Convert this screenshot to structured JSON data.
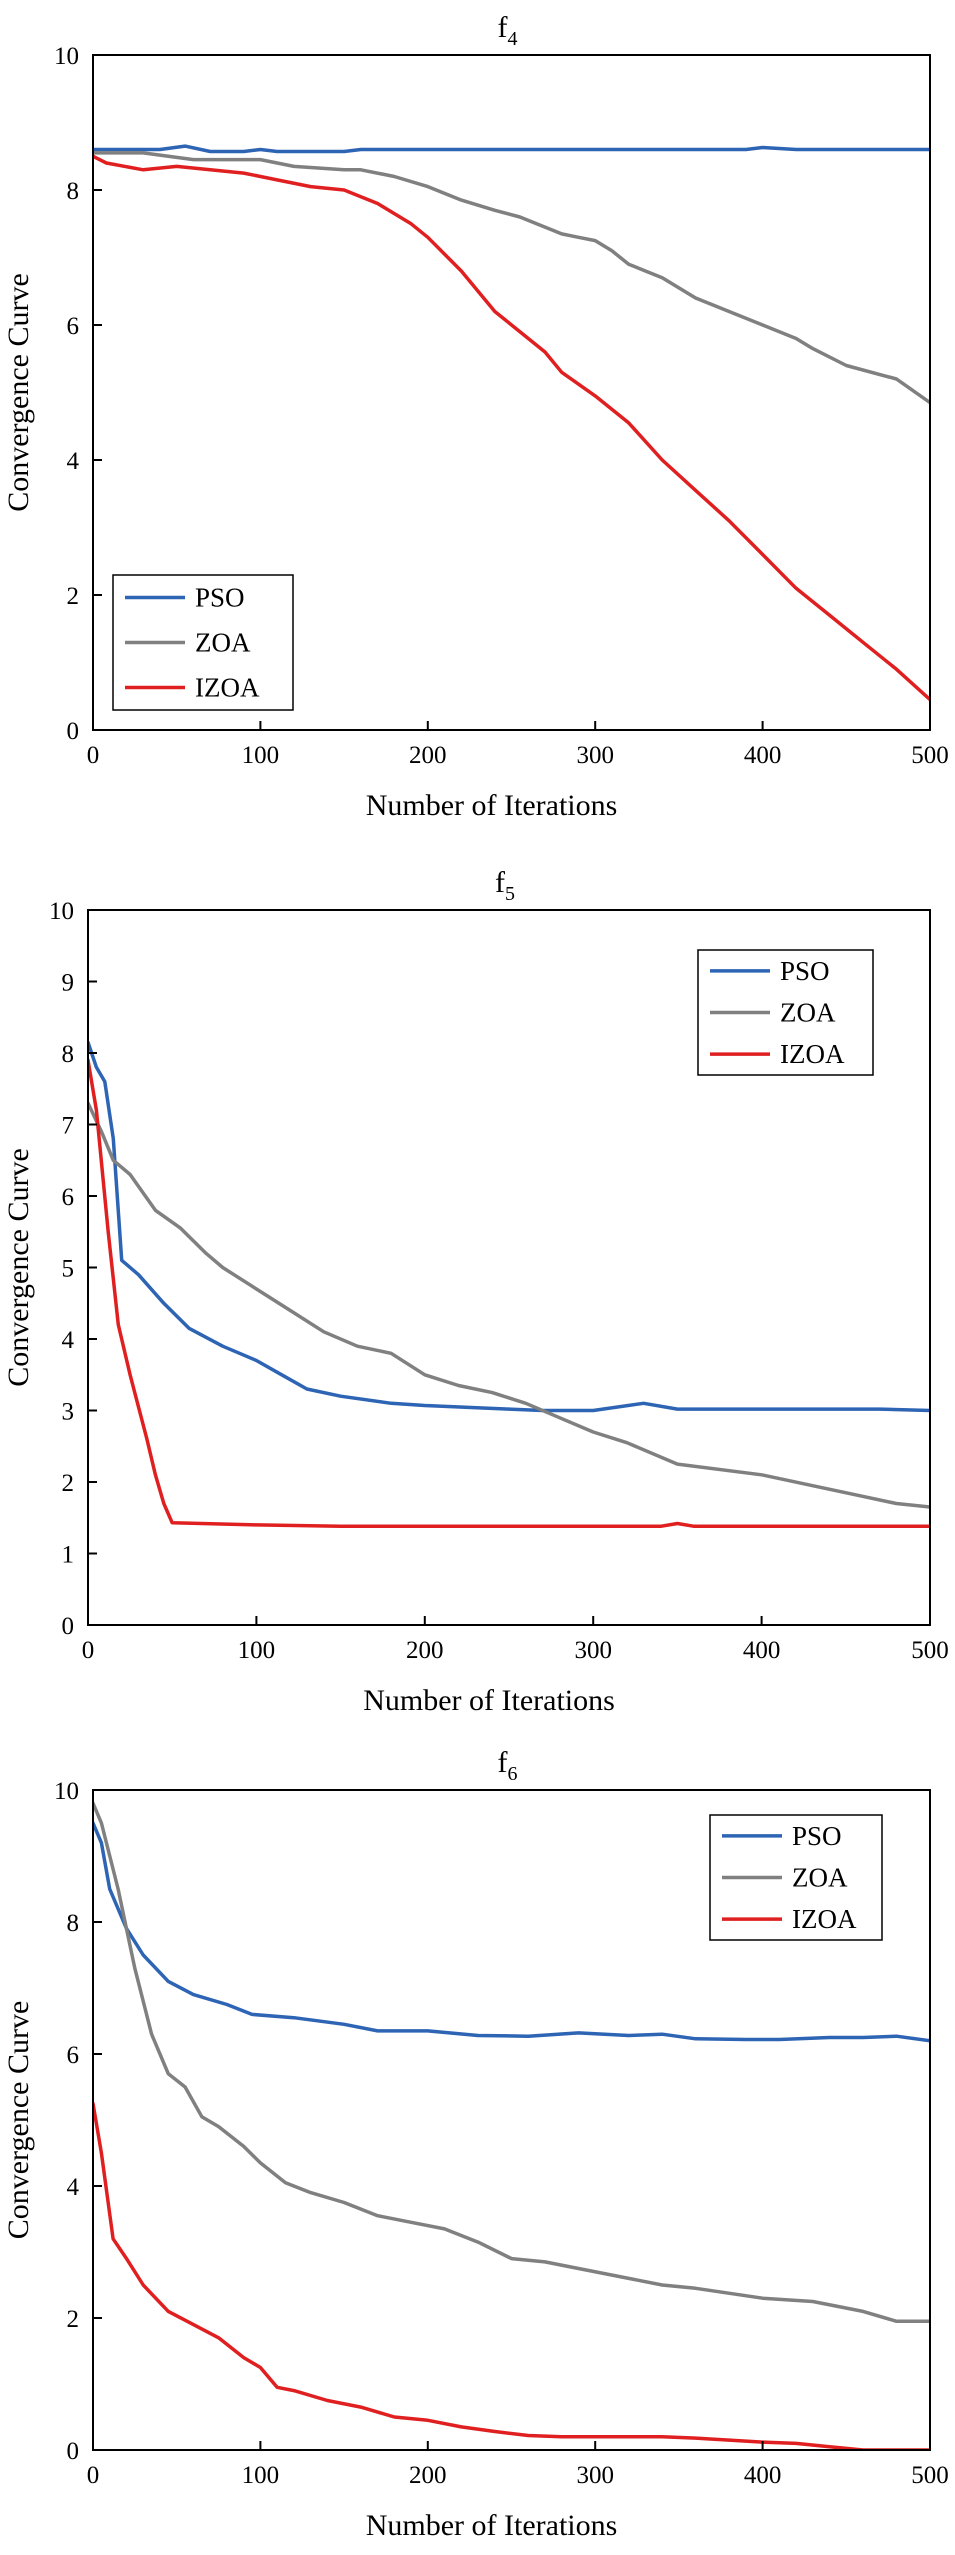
{
  "chart_data": [
    {
      "type": "line",
      "title": "f",
      "title_sub": "4",
      "xlabel": "Number of Iterations",
      "ylabel": "Convergence Curve",
      "xlim": [
        0,
        500
      ],
      "ylim": [
        0,
        10
      ],
      "xticks": [
        0,
        100,
        200,
        300,
        400,
        500
      ],
      "yticks": [
        0,
        2,
        4,
        6,
        8,
        10
      ],
      "legend_position": "bottom-left",
      "grid": false,
      "series": [
        {
          "name": "PSO",
          "color": "#2E64B4",
          "x": [
            0,
            20,
            40,
            55,
            70,
            90,
            100,
            110,
            130,
            150,
            160,
            200,
            250,
            300,
            350,
            390,
            400,
            420,
            450,
            500
          ],
          "y": [
            8.6,
            8.6,
            8.6,
            8.65,
            8.57,
            8.57,
            8.6,
            8.57,
            8.57,
            8.57,
            8.6,
            8.6,
            8.6,
            8.6,
            8.6,
            8.6,
            8.63,
            8.6,
            8.6,
            8.6
          ]
        },
        {
          "name": "ZOA",
          "color": "#808080",
          "x": [
            0,
            10,
            30,
            60,
            80,
            100,
            120,
            150,
            160,
            180,
            200,
            220,
            240,
            255,
            270,
            280,
            290,
            300,
            310,
            320,
            330,
            340,
            360,
            380,
            400,
            420,
            430,
            450,
            480,
            500
          ],
          "y": [
            8.55,
            8.55,
            8.55,
            8.45,
            8.45,
            8.45,
            8.35,
            8.3,
            8.3,
            8.2,
            8.05,
            7.85,
            7.7,
            7.6,
            7.45,
            7.35,
            7.3,
            7.25,
            7.1,
            6.9,
            6.8,
            6.7,
            6.4,
            6.2,
            6.0,
            5.8,
            5.65,
            5.4,
            5.2,
            4.85
          ]
        },
        {
          "name": "IZOA",
          "color": "#E02020",
          "x": [
            0,
            8,
            30,
            50,
            70,
            90,
            110,
            130,
            150,
            170,
            190,
            200,
            220,
            240,
            255,
            270,
            280,
            300,
            320,
            340,
            360,
            380,
            400,
            420,
            440,
            460,
            480,
            500
          ],
          "y": [
            8.5,
            8.4,
            8.3,
            8.35,
            8.3,
            8.25,
            8.15,
            8.05,
            8.0,
            7.8,
            7.5,
            7.3,
            6.8,
            6.2,
            5.9,
            5.6,
            5.3,
            4.95,
            4.55,
            4.0,
            3.55,
            3.1,
            2.6,
            2.1,
            1.7,
            1.3,
            0.9,
            0.45
          ]
        }
      ]
    },
    {
      "type": "line",
      "title": "f",
      "title_sub": "5",
      "xlabel": "Number of Iterations",
      "ylabel": "Convergence Curve",
      "xlim": [
        0,
        500
      ],
      "ylim": [
        0,
        10
      ],
      "xticks": [
        0,
        100,
        200,
        300,
        400,
        500
      ],
      "yticks": [
        0,
        1,
        2,
        3,
        4,
        5,
        6,
        7,
        8,
        9,
        10
      ],
      "legend_position": "top-right",
      "grid": false,
      "series": [
        {
          "name": "PSO",
          "color": "#2E64B4",
          "x": [
            0,
            5,
            10,
            15,
            20,
            30,
            45,
            60,
            80,
            100,
            115,
            130,
            150,
            180,
            200,
            250,
            270,
            300,
            330,
            350,
            400,
            450,
            470,
            500
          ],
          "y": [
            8.15,
            7.8,
            7.6,
            6.8,
            5.1,
            4.9,
            4.5,
            4.15,
            3.9,
            3.7,
            3.5,
            3.3,
            3.2,
            3.1,
            3.07,
            3.02,
            3.0,
            3.0,
            3.1,
            3.02,
            3.02,
            3.02,
            3.02,
            3.0
          ]
        },
        {
          "name": "ZOA",
          "color": "#808080",
          "x": [
            0,
            8,
            15,
            25,
            40,
            55,
            70,
            80,
            100,
            120,
            140,
            160,
            180,
            200,
            220,
            240,
            260,
            280,
            300,
            320,
            350,
            400,
            430,
            460,
            480,
            500
          ],
          "y": [
            7.3,
            6.9,
            6.5,
            6.3,
            5.8,
            5.55,
            5.2,
            5.0,
            4.7,
            4.4,
            4.1,
            3.9,
            3.8,
            3.5,
            3.35,
            3.25,
            3.1,
            2.9,
            2.7,
            2.55,
            2.25,
            2.1,
            1.95,
            1.8,
            1.7,
            1.65
          ]
        },
        {
          "name": "IZOA",
          "color": "#E02020",
          "x": [
            0,
            5,
            12,
            18,
            25,
            35,
            40,
            45,
            50,
            100,
            150,
            200,
            300,
            340,
            350,
            360,
            400,
            450,
            500
          ],
          "y": [
            7.9,
            7.2,
            5.5,
            4.2,
            3.5,
            2.6,
            2.1,
            1.7,
            1.43,
            1.4,
            1.38,
            1.38,
            1.38,
            1.38,
            1.42,
            1.38,
            1.38,
            1.38,
            1.38
          ]
        }
      ]
    },
    {
      "type": "line",
      "title": "f",
      "title_sub": "6",
      "xlabel": "Number of Iterations",
      "ylabel": "Convergence Curve",
      "xlim": [
        0,
        500
      ],
      "ylim": [
        0,
        10
      ],
      "xticks": [
        0,
        100,
        200,
        300,
        400,
        500
      ],
      "yticks": [
        0,
        2,
        4,
        6,
        8,
        10
      ],
      "legend_position": "top-right",
      "grid": false,
      "series": [
        {
          "name": "PSO",
          "color": "#2E64B4",
          "x": [
            0,
            5,
            10,
            20,
            30,
            45,
            60,
            80,
            95,
            120,
            150,
            170,
            200,
            230,
            260,
            290,
            320,
            340,
            360,
            390,
            410,
            440,
            460,
            480,
            500
          ],
          "y": [
            9.5,
            9.2,
            8.5,
            7.9,
            7.5,
            7.1,
            6.9,
            6.75,
            6.6,
            6.55,
            6.45,
            6.35,
            6.35,
            6.28,
            6.27,
            6.32,
            6.28,
            6.3,
            6.23,
            6.22,
            6.22,
            6.25,
            6.25,
            6.27,
            6.2
          ]
        },
        {
          "name": "ZOA",
          "color": "#808080",
          "x": [
            0,
            5,
            15,
            25,
            35,
            45,
            55,
            65,
            75,
            90,
            100,
            115,
            130,
            150,
            170,
            190,
            210,
            230,
            250,
            270,
            290,
            320,
            340,
            360,
            400,
            430,
            460,
            480,
            500
          ],
          "y": [
            9.8,
            9.5,
            8.5,
            7.3,
            6.3,
            5.7,
            5.5,
            5.05,
            4.9,
            4.6,
            4.35,
            4.05,
            3.9,
            3.75,
            3.55,
            3.45,
            3.35,
            3.15,
            2.9,
            2.85,
            2.75,
            2.6,
            2.5,
            2.45,
            2.3,
            2.25,
            2.1,
            1.95,
            1.95
          ]
        },
        {
          "name": "IZOA",
          "color": "#E02020",
          "x": [
            0,
            5,
            12,
            20,
            30,
            45,
            60,
            75,
            90,
            100,
            110,
            120,
            140,
            160,
            180,
            200,
            220,
            240,
            260,
            280,
            300,
            320,
            340,
            360,
            380,
            400,
            420,
            440,
            460,
            500
          ],
          "y": [
            5.25,
            4.5,
            3.2,
            2.9,
            2.5,
            2.1,
            1.9,
            1.7,
            1.4,
            1.25,
            0.95,
            0.9,
            0.75,
            0.65,
            0.5,
            0.45,
            0.35,
            0.28,
            0.22,
            0.2,
            0.2,
            0.2,
            0.2,
            0.18,
            0.15,
            0.12,
            0.1,
            0.05,
            0.0,
            0.0
          ]
        }
      ]
    }
  ]
}
